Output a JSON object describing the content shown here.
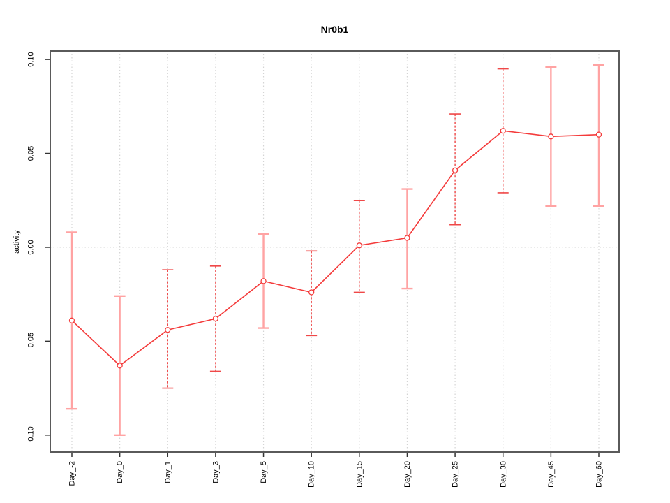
{
  "figure": {
    "background": "#ffffff"
  },
  "chart_data": {
    "type": "line",
    "title": "Nr0b1",
    "xlabel": "",
    "ylabel": "activity",
    "legend": "none",
    "categories": [
      "Day_-2",
      "Day_0",
      "Day_1",
      "Day_3",
      "Day_5",
      "Day_10",
      "Day_15",
      "Day_20",
      "Day_25",
      "Day_30",
      "Day_45",
      "Day_60"
    ],
    "series": [
      {
        "name": "activity",
        "values": [
          -0.039,
          -0.063,
          -0.044,
          -0.038,
          -0.018,
          -0.024,
          0.001,
          0.005,
          0.041,
          0.062,
          0.059,
          0.06
        ],
        "err_low": [
          -0.086,
          -0.1,
          -0.075,
          -0.066,
          -0.043,
          -0.047,
          -0.024,
          -0.022,
          0.012,
          0.029,
          0.022,
          0.022
        ],
        "err_high": [
          0.008,
          -0.026,
          -0.012,
          -0.01,
          0.007,
          -0.002,
          0.025,
          0.031,
          0.071,
          0.095,
          0.096,
          0.097
        ],
        "err_style": [
          "solid",
          "solid",
          "dashed",
          "dashed",
          "solid",
          "dashed",
          "dashed",
          "solid",
          "dashed",
          "dashed",
          "solid",
          "solid"
        ]
      }
    ],
    "ylim": [
      -0.109,
      0.1045
    ],
    "y_ticks": [
      -0.1,
      -0.05,
      0.0,
      0.05,
      0.1
    ],
    "y_tick_labels": [
      "-0.10",
      "-0.05",
      "0.00",
      "0.05",
      "0.10"
    ],
    "grid": {
      "vertical": "dotted line at every category",
      "horizontal": "dotted line at y=0 only"
    },
    "colors": {
      "line": "#f43b3b",
      "point": "#f43b3b",
      "error_solid": "#ffa3a3",
      "error_dashed": "#ef4848",
      "grid": "#d4d4d4",
      "axis": "#5a5a5a",
      "tick": "#333333",
      "text": "#000000"
    }
  }
}
